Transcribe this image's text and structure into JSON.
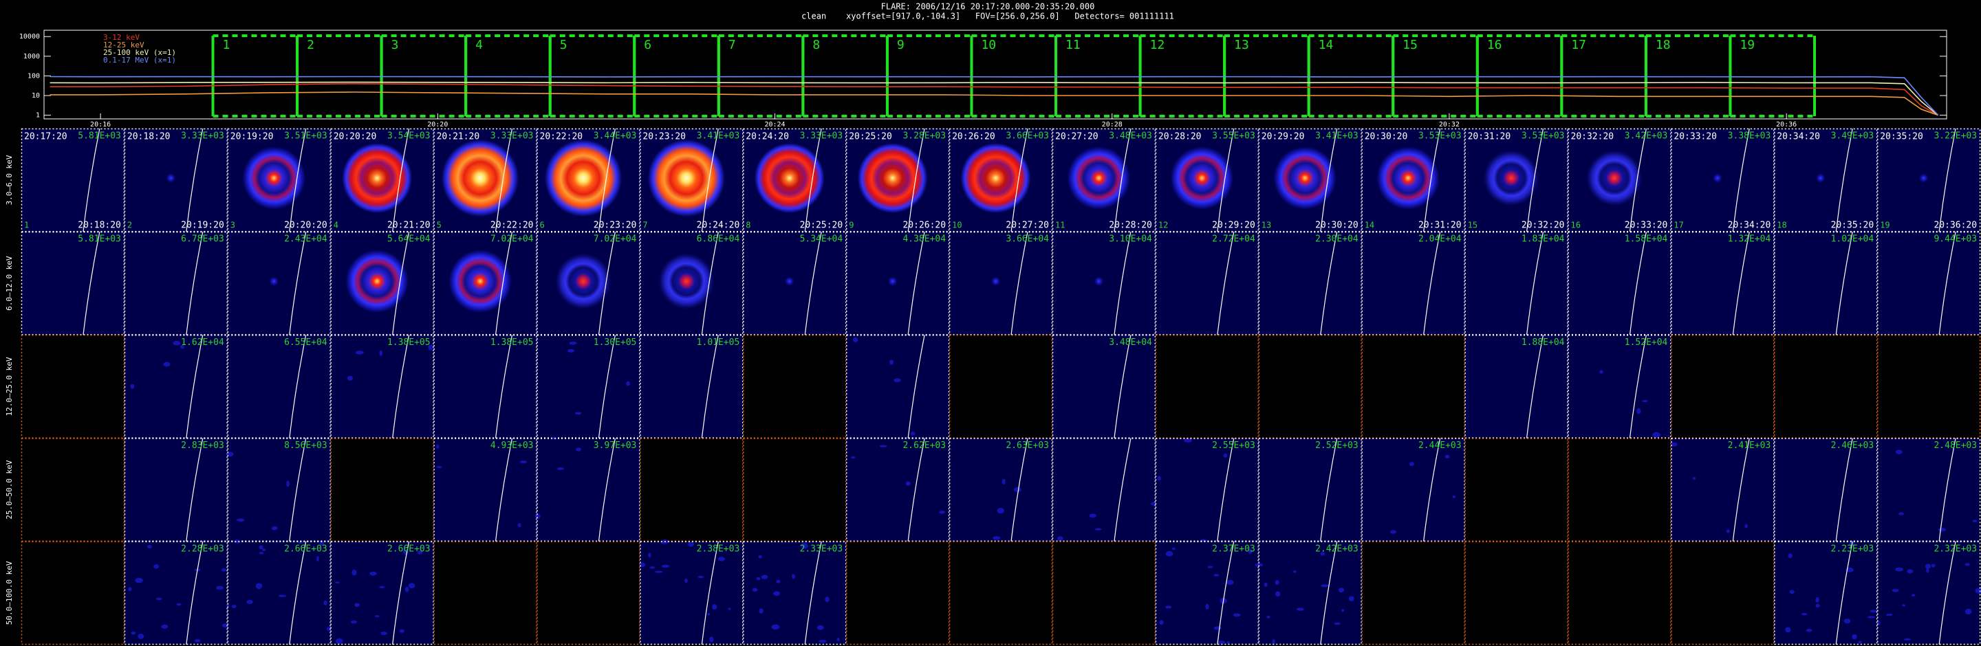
{
  "header": {
    "title": "FLARE: 2006/12/16 20:17:20.000-20:35:20.000",
    "subtitle": "clean    xyoffset=[917.0,-104.3]   FOV=[256.0,256.0]   Detectors= 001111111"
  },
  "chart_data": {
    "type": "line",
    "log_y": true,
    "legend": "top-left",
    "x": [
      15.4,
      16,
      17,
      18,
      19,
      20,
      21,
      22,
      23,
      24,
      25,
      26,
      27,
      28,
      29,
      30,
      31,
      32,
      33,
      34,
      35,
      36,
      37,
      37.4,
      37.6,
      37.8
    ],
    "series": [
      {
        "name": "3-12 keV",
        "color": "#e03a20",
        "values": [
          28,
          28,
          30,
          36,
          40,
          38,
          35,
          32,
          30,
          29,
          28,
          28,
          27,
          27,
          26,
          26,
          26,
          25,
          25,
          25,
          25,
          24,
          24,
          20,
          3,
          1
        ]
      },
      {
        "name": "12-25 keV",
        "color": "#f09a40",
        "values": [
          11,
          11,
          12,
          14,
          15,
          14,
          13,
          12,
          12,
          11,
          11,
          11,
          10,
          10,
          10,
          10,
          10,
          9,
          10,
          9,
          9,
          9,
          9,
          8,
          2,
          1
        ]
      },
      {
        "name": "25-100 keV (x=1)",
        "color": "#f0f0b0",
        "values": [
          45,
          44,
          46,
          47,
          48,
          47,
          46,
          45,
          46,
          45,
          44,
          45,
          46,
          45,
          44,
          45,
          46,
          45,
          44,
          45,
          46,
          45,
          45,
          40,
          5,
          1
        ]
      },
      {
        "name": "0.1-17 MeV (x=1)",
        "color": "#6a88ff",
        "values": [
          92,
          90,
          91,
          90,
          92,
          91,
          90,
          89,
          90,
          91,
          90,
          90,
          89,
          90,
          91,
          90,
          89,
          90,
          90,
          91,
          90,
          89,
          90,
          80,
          8,
          1
        ]
      }
    ],
    "xlim": [
      15.33,
      37.9
    ],
    "xticks": [
      {
        "value": 16,
        "label": "20:16"
      },
      {
        "value": 20,
        "label": "20:20"
      },
      {
        "value": 24,
        "label": "20:24"
      },
      {
        "value": 28,
        "label": "20:28"
      },
      {
        "value": 32,
        "label": "20:32"
      },
      {
        "value": 36,
        "label": "20:36"
      }
    ],
    "ylim": [
      0.65,
      21000
    ],
    "yticks": [
      1,
      10,
      100,
      1000,
      10000
    ]
  },
  "grid": {
    "columns": [
      {
        "start": "20:17:20",
        "end": "20:18:20",
        "number": 1
      },
      {
        "start": "20:18:20",
        "end": "20:19:20",
        "number": 2
      },
      {
        "start": "20:19:20",
        "end": "20:20:20",
        "number": 3
      },
      {
        "start": "20:20:20",
        "end": "20:21:20",
        "number": 4
      },
      {
        "start": "20:21:20",
        "end": "20:22:20",
        "number": 5
      },
      {
        "start": "20:22:20",
        "end": "20:23:20",
        "number": 6
      },
      {
        "start": "20:23:20",
        "end": "20:24:20",
        "number": 7
      },
      {
        "start": "20:24:20",
        "end": "20:25:20",
        "number": 8
      },
      {
        "start": "20:25:20",
        "end": "20:26:20",
        "number": 9
      },
      {
        "start": "20:26:20",
        "end": "20:27:20",
        "number": 10
      },
      {
        "start": "20:27:20",
        "end": "20:28:20",
        "number": 11
      },
      {
        "start": "20:28:20",
        "end": "20:29:20",
        "number": 12
      },
      {
        "start": "20:29:20",
        "end": "20:30:20",
        "number": 13
      },
      {
        "start": "20:30:20",
        "end": "20:31:20",
        "number": 14
      },
      {
        "start": "20:31:20",
        "end": "20:32:20",
        "number": 15
      },
      {
        "start": "20:32:20",
        "end": "20:33:20",
        "number": 16
      },
      {
        "start": "20:33:20",
        "end": "20:34:20",
        "number": 17
      },
      {
        "start": "20:34:20",
        "end": "20:35:20",
        "number": 18
      },
      {
        "start": "20:35:20",
        "end": "20:36:20",
        "number": 19
      }
    ],
    "rows": [
      {
        "label": "3.0–6.0 keV",
        "max": [
          "5.81E+03",
          "3.33E+03",
          "3.51E+03",
          "3.54E+03",
          "3.33E+03",
          "3.44E+03",
          "3.41E+03",
          "3.33E+03",
          "3.28E+03",
          "3.66E+03",
          "3.48E+03",
          "3.55E+03",
          "3.41E+03",
          "3.53E+03",
          "3.53E+03",
          "3.42E+03",
          "3.38E+03",
          "3.49E+03",
          "3.22E+03"
        ]
      },
      {
        "label": "6.0–12.0 keV",
        "max": [
          "5.81E+03",
          "6.78E+03",
          "2.43E+04",
          "5.64E+04",
          "7.02E+04",
          "7.02E+04",
          "6.86E+04",
          "5.34E+04",
          "4.38E+04",
          "3.66E+04",
          "3.10E+04",
          "2.72E+04",
          "2.30E+04",
          "2.04E+04",
          "1.83E+04",
          "1.58E+04",
          "1.32E+04",
          "1.02E+04",
          "9.44E+03"
        ]
      },
      {
        "label": "12.0–25.0 keV",
        "max": [
          null,
          "1.62E+04",
          "6.55E+04",
          "1.38E+05",
          "1.38E+05",
          "1.30E+05",
          "1.01E+05",
          null,
          null,
          null,
          "3.48E+04",
          null,
          null,
          null,
          "1.88E+04",
          "1.52E+04",
          null,
          null,
          null
        ]
      },
      {
        "label": "25.0–50.0 keV",
        "max": [
          null,
          "2.83E+03",
          "8.56E+03",
          null,
          "4.93E+03",
          "3.97E+03",
          null,
          null,
          "2.62E+03",
          "2.63E+03",
          null,
          "2.55E+03",
          "2.52E+03",
          "2.44E+03",
          null,
          null,
          "2.41E+03",
          "2.46E+03",
          "2.48E+03"
        ]
      },
      {
        "label": "50.0–100.0 keV",
        "max": [
          null,
          "2.28E+03",
          "2.66E+03",
          "2.66E+03",
          null,
          null,
          "2.38E+03",
          "2.33E+03",
          null,
          null,
          null,
          "2.37E+03",
          "2.42E+03",
          null,
          null,
          null,
          null,
          "2.23E+03",
          "2.32E+03"
        ]
      }
    ]
  }
}
